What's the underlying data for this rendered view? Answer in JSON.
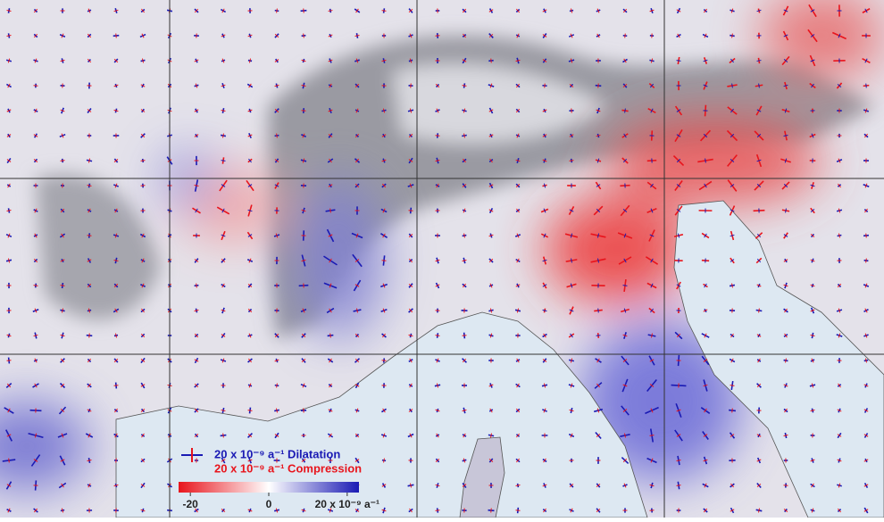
{
  "legend": {
    "dilatation": "20 x 10⁻⁹ a⁻¹ Dilatation",
    "compression": "20 x 10⁻⁹ a⁻¹ Compression"
  },
  "colorbar": {
    "lim": [
      -23,
      23
    ],
    "ticks": [
      -20,
      0,
      {
        "value": 20,
        "label": "20 x 10⁻⁹ a⁻¹"
      }
    ]
  }
}
